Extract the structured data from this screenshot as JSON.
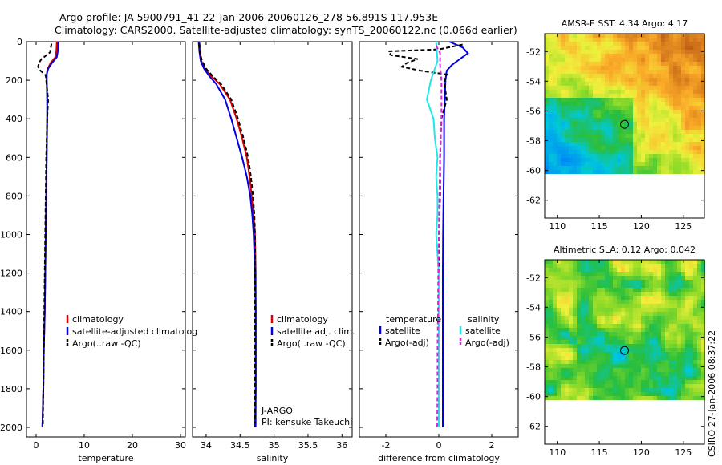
{
  "header": {
    "line1": "Argo profile: JA 5900791_41 22-Jan-2006 20060126_278 56.891S 117.953E",
    "line2": "Climatology: CARS2000. Satellite-adjusted climatology: synTS_20060122.nc (0.066d earlier)"
  },
  "side_label": "CSIRO 27-Jan-2006 08:37:22",
  "colors": {
    "climatology": "#e00000",
    "satellite": "#0000e0",
    "argo": "#000000",
    "salinity_satellite": "#22e6e6",
    "salinity_argo": "#e020e0"
  },
  "chart_data": [
    {
      "id": "temperature",
      "type": "line",
      "xlabel": "temperature",
      "ylabel": "",
      "xlim": [
        -2,
        31
      ],
      "ylim": [
        2050,
        0
      ],
      "xticks": [
        0,
        10,
        20,
        30
      ],
      "yticks": [
        0,
        200,
        400,
        600,
        800,
        1000,
        1200,
        1400,
        1600,
        1800,
        2000
      ],
      "legend": [
        "climatology",
        "satellite-adjusted climatolog",
        "Argo(..raw -QC)"
      ],
      "series": [
        {
          "name": "climatology",
          "color": "#e00000",
          "dash": "",
          "points": [
            [
              4.3,
              0
            ],
            [
              4.2,
              50
            ],
            [
              4.0,
              80
            ],
            [
              3.0,
              110
            ],
            [
              2.4,
              140
            ],
            [
              2.2,
              170
            ],
            [
              2.2,
              200
            ],
            [
              2.3,
              300
            ],
            [
              2.3,
              400
            ],
            [
              2.2,
              600
            ],
            [
              2.1,
              800
            ],
            [
              2.0,
              1000
            ],
            [
              1.9,
              1200
            ],
            [
              1.8,
              1400
            ],
            [
              1.6,
              1600
            ],
            [
              1.5,
              1800
            ],
            [
              1.3,
              2000
            ]
          ]
        },
        {
          "name": "satellite-adjusted climatolog",
          "color": "#0000e0",
          "dash": "",
          "points": [
            [
              4.6,
              0
            ],
            [
              4.5,
              50
            ],
            [
              4.3,
              80
            ],
            [
              3.3,
              110
            ],
            [
              2.5,
              140
            ],
            [
              2.2,
              170
            ],
            [
              2.2,
              200
            ],
            [
              2.3,
              300
            ],
            [
              2.3,
              400
            ],
            [
              2.2,
              600
            ],
            [
              2.1,
              800
            ],
            [
              2.0,
              1000
            ],
            [
              1.9,
              1200
            ],
            [
              1.8,
              1400
            ],
            [
              1.6,
              1600
            ],
            [
              1.5,
              1800
            ],
            [
              1.3,
              2000
            ]
          ]
        },
        {
          "name": "Argo(..raw -QC)",
          "color": "#000000",
          "dash": "5,3",
          "points": [
            [
              3.2,
              10
            ],
            [
              2.9,
              55
            ],
            [
              1.9,
              75
            ],
            [
              1.1,
              90
            ],
            [
              0.6,
              110
            ],
            [
              0.4,
              130
            ],
            [
              0.9,
              150
            ],
            [
              2.0,
              175
            ],
            [
              2.1,
              200
            ],
            [
              2.5,
              300
            ],
            [
              2.3,
              400
            ],
            [
              2.1,
              600
            ],
            [
              2.0,
              800
            ],
            [
              1.9,
              1000
            ],
            [
              1.8,
              1200
            ],
            [
              1.7,
              1400
            ],
            [
              1.6,
              1600
            ],
            [
              1.5,
              1800
            ],
            [
              1.4,
              2000
            ]
          ]
        }
      ]
    },
    {
      "id": "salinity",
      "type": "line",
      "xlabel": "salinity",
      "ylabel": "",
      "xlim": [
        33.8,
        36.15
      ],
      "ylim": [
        2050,
        0
      ],
      "xticks": [
        34,
        34.5,
        35,
        35.5,
        36
      ],
      "yticks": [],
      "legend": [
        "climatology",
        "satellite adj. clim.",
        "Argo(..raw -QC)"
      ],
      "annotations": [
        "J-ARGO",
        "PI: kensuke Takeuchi"
      ],
      "series": [
        {
          "name": "climatology",
          "color": "#e00000",
          "dash": "",
          "points": [
            [
              33.9,
              0
            ],
            [
              33.91,
              50
            ],
            [
              33.93,
              100
            ],
            [
              33.98,
              140
            ],
            [
              34.08,
              180
            ],
            [
              34.2,
              220
            ],
            [
              34.35,
              300
            ],
            [
              34.45,
              400
            ],
            [
              34.53,
              500
            ],
            [
              34.6,
              600
            ],
            [
              34.64,
              700
            ],
            [
              34.67,
              800
            ],
            [
              34.7,
              900
            ],
            [
              34.72,
              1000
            ],
            [
              34.73,
              1200
            ],
            [
              34.73,
              1400
            ],
            [
              34.73,
              1600
            ],
            [
              34.73,
              1800
            ],
            [
              34.73,
              2000
            ]
          ]
        },
        {
          "name": "satellite adj. clim.",
          "color": "#0000e0",
          "dash": "",
          "points": [
            [
              33.89,
              0
            ],
            [
              33.9,
              50
            ],
            [
              33.92,
              100
            ],
            [
              33.97,
              140
            ],
            [
              34.05,
              180
            ],
            [
              34.15,
              220
            ],
            [
              34.28,
              300
            ],
            [
              34.37,
              400
            ],
            [
              34.45,
              500
            ],
            [
              34.53,
              600
            ],
            [
              34.6,
              700
            ],
            [
              34.65,
              800
            ],
            [
              34.68,
              900
            ],
            [
              34.7,
              1000
            ],
            [
              34.72,
              1200
            ],
            [
              34.73,
              1400
            ],
            [
              34.73,
              1600
            ],
            [
              34.73,
              1800
            ],
            [
              34.72,
              2000
            ]
          ]
        },
        {
          "name": "Argo(..raw -QC)",
          "color": "#000000",
          "dash": "5,3",
          "points": [
            [
              33.9,
              10
            ],
            [
              33.91,
              60
            ],
            [
              33.94,
              100
            ],
            [
              34.0,
              140
            ],
            [
              34.1,
              180
            ],
            [
              34.22,
              220
            ],
            [
              34.37,
              300
            ],
            [
              34.47,
              400
            ],
            [
              34.55,
              500
            ],
            [
              34.62,
              600
            ],
            [
              34.66,
              700
            ],
            [
              34.69,
              800
            ],
            [
              34.71,
              900
            ],
            [
              34.72,
              1000
            ],
            [
              34.72,
              1200
            ],
            [
              34.72,
              1400
            ],
            [
              34.72,
              1600
            ],
            [
              34.72,
              1800
            ],
            [
              34.72,
              1980
            ]
          ]
        }
      ]
    },
    {
      "id": "difference",
      "type": "line",
      "xlabel": "difference from climatology",
      "ylabel": "",
      "xlim": [
        -3,
        3
      ],
      "ylim": [
        2050,
        0
      ],
      "xticks": [
        -2,
        0,
        2
      ],
      "yticks": [],
      "legend_temperature_title": "temperature",
      "legend_salinity_title": "salinity",
      "legend": [
        "satellite",
        "Argo(-adj)",
        "satellite",
        "Argo(-adj)"
      ],
      "series": [
        {
          "name": "satellite",
          "group": "temperature",
          "color": "#0000e0",
          "dash": "",
          "points": [
            [
              0.4,
              0
            ],
            [
              0.9,
              30
            ],
            [
              1.1,
              60
            ],
            [
              0.9,
              80
            ],
            [
              0.7,
              100
            ],
            [
              0.5,
              120
            ],
            [
              0.3,
              150
            ],
            [
              0.25,
              200
            ],
            [
              0.2,
              400
            ],
            [
              0.2,
              600
            ],
            [
              0.18,
              800
            ],
            [
              0.16,
              1000
            ],
            [
              0.15,
              1200
            ],
            [
              0.15,
              1400
            ],
            [
              0.15,
              1600
            ],
            [
              0.15,
              1800
            ],
            [
              0.15,
              2000
            ]
          ]
        },
        {
          "name": "Argo(-adj)",
          "group": "temperature",
          "color": "#000000",
          "dash": "5,3",
          "points": [
            [
              0.9,
              15
            ],
            [
              0.0,
              40
            ],
            [
              -1.9,
              50
            ],
            [
              -1.8,
              70
            ],
            [
              -0.8,
              90
            ],
            [
              -1.2,
              110
            ],
            [
              -1.4,
              130
            ],
            [
              -0.7,
              150
            ],
            [
              0.3,
              170
            ],
            [
              0.2,
              210
            ],
            [
              0.3,
              300
            ],
            [
              0.1,
              400
            ],
            [
              0.05,
              600
            ],
            [
              0.05,
              800
            ],
            [
              0.0,
              1000
            ],
            [
              0.0,
              1200
            ],
            [
              0.0,
              1400
            ],
            [
              0.0,
              1600
            ],
            [
              0.0,
              1800
            ],
            [
              0.0,
              2000
            ]
          ]
        },
        {
          "name": "satellite",
          "group": "salinity",
          "color": "#22e6e6",
          "dash": "",
          "points": [
            [
              -0.1,
              0
            ],
            [
              -0.05,
              100
            ],
            [
              -0.3,
              200
            ],
            [
              -0.45,
              300
            ],
            [
              -0.2,
              400
            ],
            [
              -0.15,
              500
            ],
            [
              -0.05,
              600
            ],
            [
              -0.1,
              700
            ],
            [
              -0.05,
              800
            ],
            [
              -0.05,
              900
            ],
            [
              -0.1,
              1000
            ],
            [
              0.0,
              1200
            ],
            [
              0.0,
              1400
            ],
            [
              0.0,
              1600
            ],
            [
              0.0,
              1800
            ],
            [
              0.0,
              2000
            ]
          ]
        },
        {
          "name": "Argo(-adj)",
          "group": "salinity",
          "color": "#e020e0",
          "dash": "5,3",
          "points": [
            [
              -0.1,
              20
            ],
            [
              0.05,
              60
            ],
            [
              0.05,
              120
            ],
            [
              0.1,
              200
            ],
            [
              0.1,
              400
            ],
            [
              0.05,
              600
            ],
            [
              0.02,
              800
            ],
            [
              0.0,
              1000
            ],
            [
              -0.02,
              1200
            ],
            [
              -0.03,
              1400
            ],
            [
              -0.05,
              1600
            ],
            [
              -0.05,
              1800
            ],
            [
              -0.06,
              2000
            ]
          ]
        }
      ]
    },
    {
      "id": "sst_map",
      "type": "heatmap",
      "title": "AMSR-E SST: 4.34 Argo: 4.17",
      "xlim": [
        108.5,
        127.5
      ],
      "ylim": [
        -63.2,
        -50.8
      ],
      "xticks": [
        110,
        115,
        120,
        125
      ],
      "yticks": [
        -52,
        -54,
        -56,
        -58,
        -60,
        -62
      ],
      "data_extent_lat": [
        -60,
        -50.8
      ],
      "marker": {
        "lon": 118,
        "lat": -56.9
      }
    },
    {
      "id": "sla_map",
      "type": "heatmap",
      "title": "Altimetric SLA: 0.12 Argo: 0.042",
      "xlim": [
        108.5,
        127.5
      ],
      "ylim": [
        -63.2,
        -50.8
      ],
      "xticks": [
        110,
        115,
        120,
        125
      ],
      "yticks": [
        -52,
        -54,
        -56,
        -58,
        -60,
        -62
      ],
      "data_extent_lat": [
        -60,
        -50.8
      ],
      "marker": {
        "lon": 118,
        "lat": -56.9
      }
    }
  ]
}
